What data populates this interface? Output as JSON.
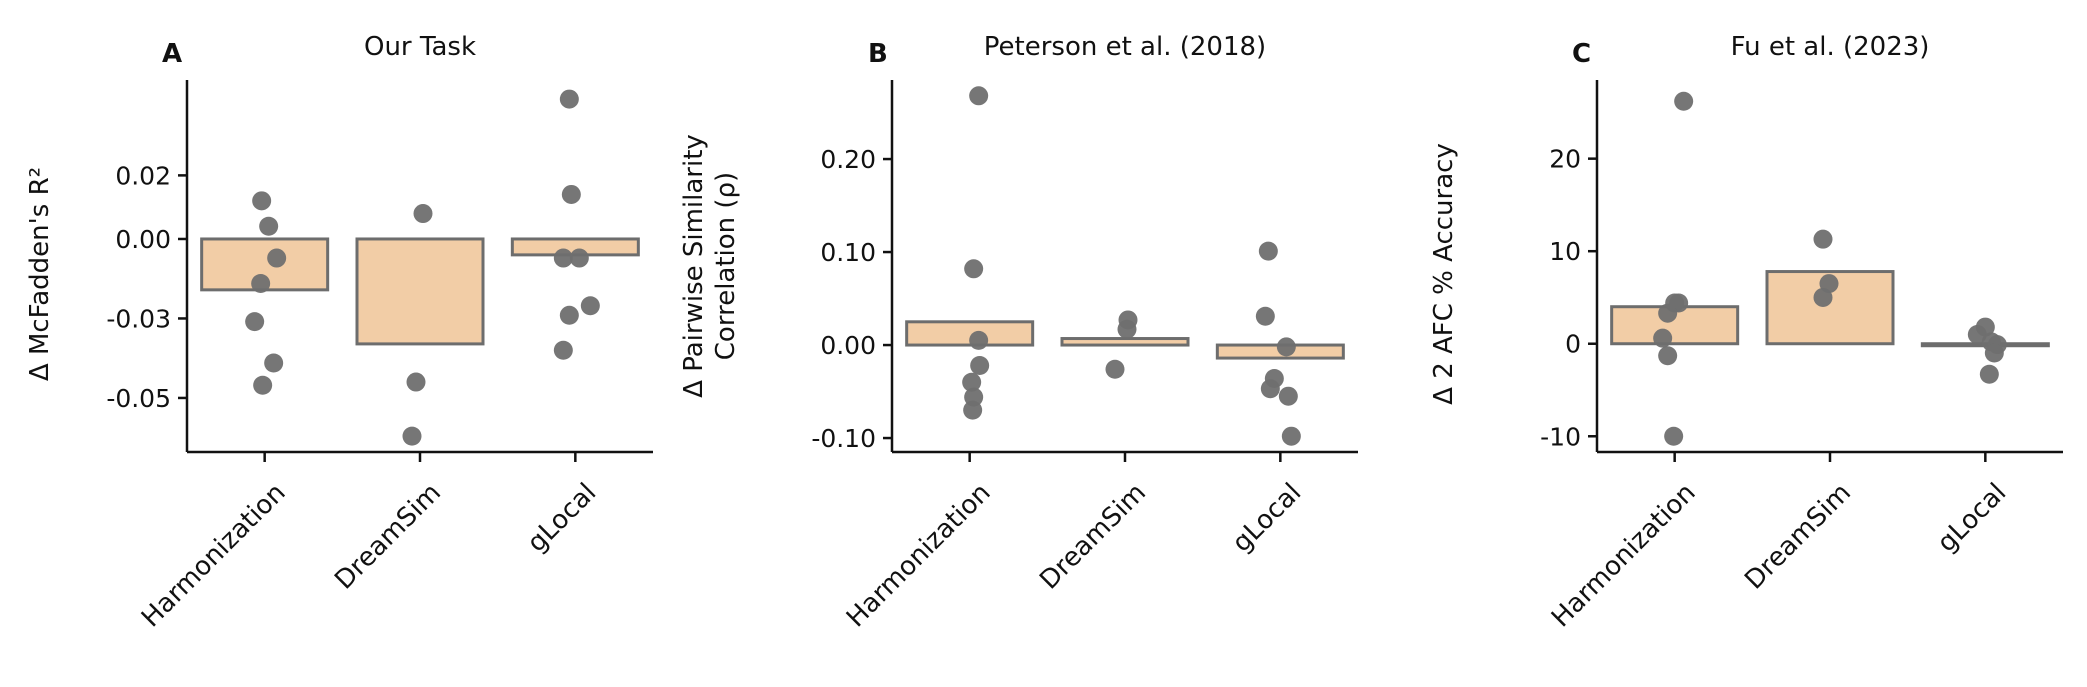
{
  "colors": {
    "bar_fill": "#f2cda6",
    "bar_edge": "#6d6d6d",
    "point": "#6f6f6f"
  },
  "chart_data": [
    {
      "type": "bar",
      "panel": "A",
      "title": "Our Task",
      "ylabel": "Δ McFadden's R²",
      "categories": [
        "Harmonization",
        "DreamSim",
        "gLocal"
      ],
      "ylim": [
        -0.067,
        0.05
      ],
      "yticks": [
        0.02,
        0.0,
        -0.025,
        -0.05
      ],
      "ytick_labels": [
        "0.02",
        "0.00",
        "-0.03",
        "-0.05"
      ],
      "values": [
        -0.016,
        -0.033,
        -0.005
      ],
      "points": [
        [
          0.012,
          0.004,
          -0.006,
          -0.014,
          -0.026,
          -0.039,
          -0.046
        ],
        [
          0.008,
          -0.045,
          -0.062
        ],
        [
          0.044,
          0.014,
          -0.006,
          -0.006,
          -0.024,
          -0.021,
          -0.035
        ]
      ]
    },
    {
      "type": "bar",
      "panel": "B",
      "title": "Peterson et al. (2018)",
      "ylabel": "Δ Pairwise Similarity Correlation (ρ)",
      "categories": [
        "Harmonization",
        "DreamSim",
        "gLocal"
      ],
      "ylim": [
        -0.115,
        0.285
      ],
      "yticks": [
        0.2,
        0.1,
        0.0,
        -0.1
      ],
      "ytick_labels": [
        "0.20",
        "0.10",
        "0.00",
        "-0.10"
      ],
      "values": [
        0.025,
        0.007,
        -0.014
      ],
      "points": [
        [
          0.268,
          0.082,
          0.005,
          -0.022,
          -0.04,
          -0.056,
          -0.07
        ],
        [
          0.027,
          0.017,
          -0.026
        ],
        [
          0.101,
          0.031,
          -0.002,
          -0.036,
          -0.047,
          -0.055,
          -0.098
        ]
      ]
    },
    {
      "type": "bar",
      "panel": "C",
      "title": "Fu et al. (2023)",
      "ylabel": "Δ 2 AFC % Accuracy",
      "categories": [
        "Harmonization",
        "DreamSim",
        "gLocal"
      ],
      "ylim": [
        -11.7,
        28.5
      ],
      "yticks": [
        20,
        10,
        0,
        -10
      ],
      "ytick_labels": [
        "20",
        "10",
        "0",
        "-10"
      ],
      "values": [
        4.0,
        7.8,
        0.0
      ],
      "points": [
        [
          26.2,
          4.4,
          4.4,
          3.3,
          0.6,
          -1.3,
          -10.0
        ],
        [
          11.3,
          6.5,
          5.0
        ],
        [
          1.8,
          1.0,
          0.2,
          -0.1,
          -1.0,
          -3.3
        ]
      ]
    }
  ]
}
